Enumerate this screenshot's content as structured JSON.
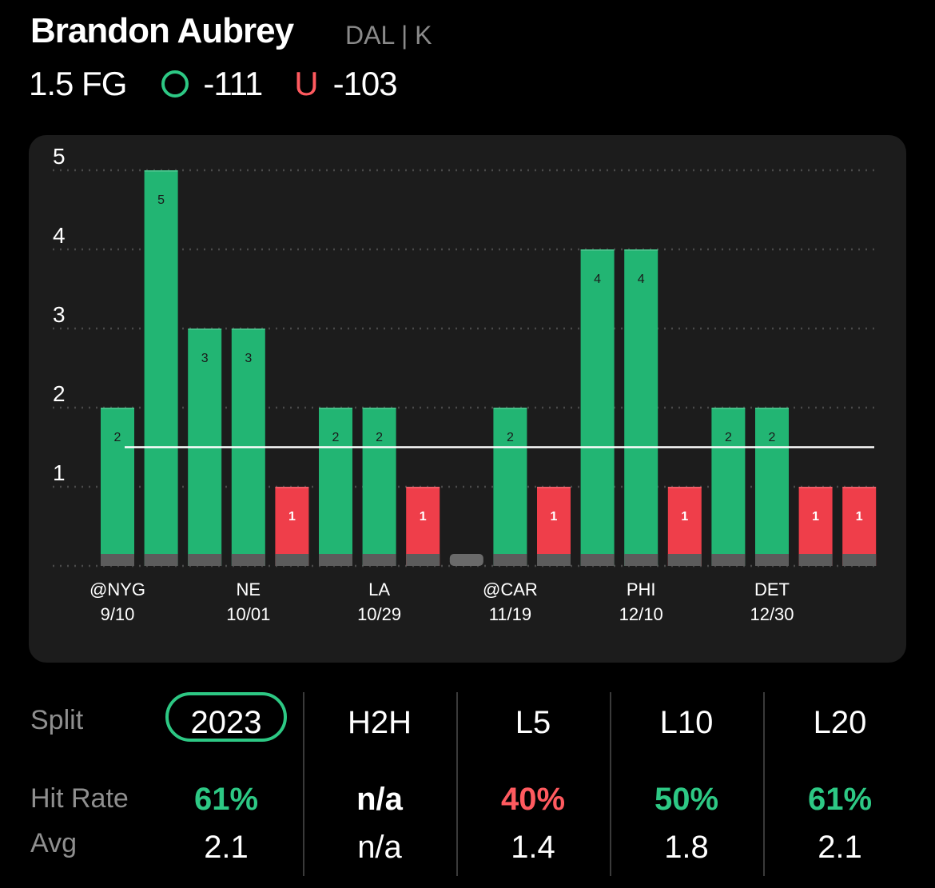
{
  "header": {
    "player": "Brandon Aubrey",
    "team_pos": "DAL | K",
    "prop": "1.5 FG",
    "over_symbol": "O",
    "over_odds": "-111",
    "under_symbol": "U",
    "under_odds": "-103"
  },
  "colors": {
    "hit": "#22b573",
    "miss": "#ef3e4a",
    "base": "#5c5c5c",
    "accent": "#2dc884"
  },
  "chart_data": {
    "type": "bar",
    "ylim": [
      0,
      5
    ],
    "yticks": [
      "1",
      "2",
      "3",
      "4",
      "5"
    ],
    "threshold": 1.5,
    "grid": true,
    "values": [
      2,
      5,
      3,
      3,
      1,
      2,
      2,
      1,
      0,
      2,
      1,
      4,
      4,
      1,
      2,
      2,
      1,
      1
    ],
    "status": [
      "over",
      "over",
      "over",
      "over",
      "under",
      "over",
      "over",
      "under",
      "none",
      "over",
      "under",
      "over",
      "over",
      "under",
      "over",
      "over",
      "under",
      "under"
    ],
    "x_labels": [
      {
        "bar": 0,
        "team": "@NYG",
        "date": "9/10"
      },
      {
        "bar": 3,
        "team": "NE",
        "date": "10/01"
      },
      {
        "bar": 6,
        "team": "LA",
        "date": "10/29"
      },
      {
        "bar": 9,
        "team": "@CAR",
        "date": "11/19"
      },
      {
        "bar": 12,
        "team": "PHI",
        "date": "12/10"
      },
      {
        "bar": 15,
        "team": "DET",
        "date": "12/30"
      }
    ]
  },
  "splits": {
    "row_labels": {
      "split": "Split",
      "hit_rate": "Hit Rate",
      "avg": "Avg"
    },
    "columns": [
      {
        "name": "2023",
        "hit_rate": "61%",
        "hit_color": "green",
        "avg": "2.1",
        "selected": true
      },
      {
        "name": "H2H",
        "hit_rate": "n/a",
        "hit_color": "white",
        "avg": "n/a",
        "selected": false
      },
      {
        "name": "L5",
        "hit_rate": "40%",
        "hit_color": "red",
        "avg": "1.4",
        "selected": false
      },
      {
        "name": "L10",
        "hit_rate": "50%",
        "hit_color": "green",
        "avg": "1.8",
        "selected": false
      },
      {
        "name": "L20",
        "hit_rate": "61%",
        "hit_color": "green",
        "avg": "2.1",
        "selected": false
      }
    ]
  }
}
